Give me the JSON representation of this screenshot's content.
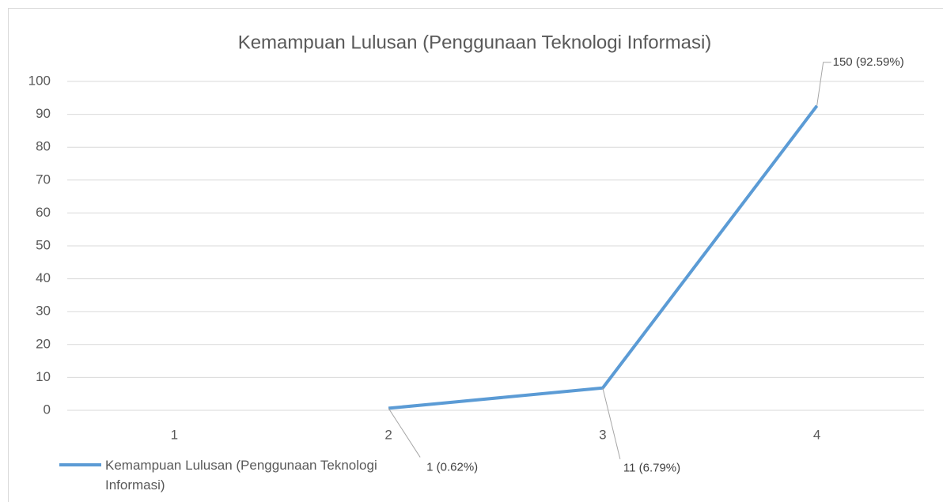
{
  "chart_data": {
    "type": "line",
    "title": "Kemampuan Lulusan (Penggunaan Teknologi Informasi)",
    "categories": [
      "1",
      "2",
      "3",
      "4"
    ],
    "series": [
      {
        "name": "Kemampuan Lulusan (Penggunaan Teknologi Informasi)",
        "color": "#5b9bd5",
        "values": [
          null,
          0.62,
          6.79,
          92.59
        ],
        "value_labels": [
          null,
          "1 (0.62%)",
          "11 (6.79%)",
          "150 (92.59%)"
        ]
      }
    ],
    "ylim": [
      0,
      100
    ],
    "yticks": [
      0,
      10,
      20,
      30,
      40,
      50,
      60,
      70,
      80,
      90,
      100
    ],
    "grid": true,
    "legend": "bottom-left"
  }
}
